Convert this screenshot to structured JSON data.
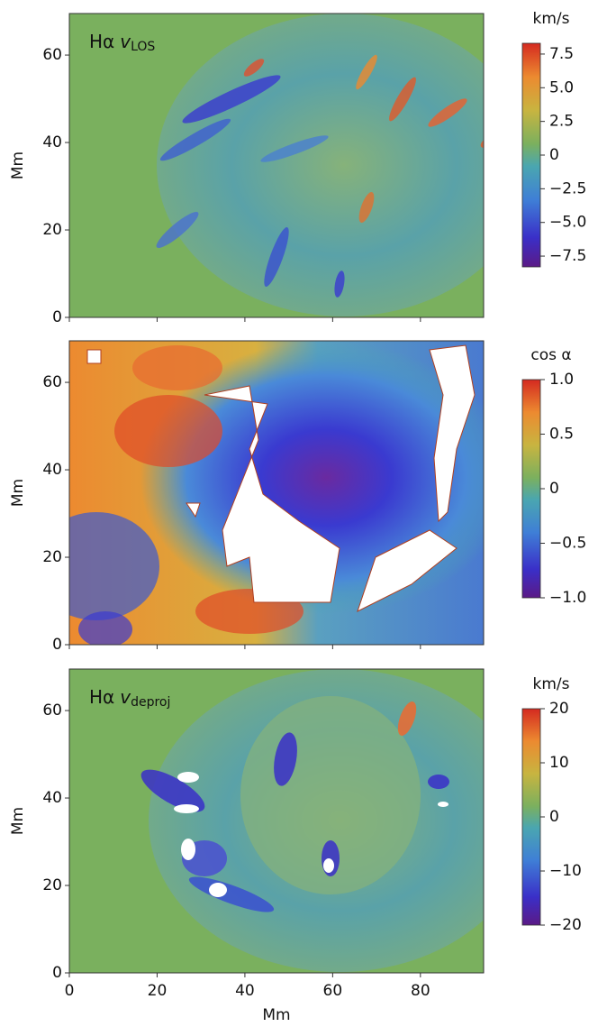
{
  "chart_data": [
    {
      "type": "heatmap",
      "annotation": {
        "prefix": "Hα",
        "symbol": "v",
        "subscript": "LOS"
      },
      "ylabel": "Mm",
      "xlim": [
        0,
        94.4
      ],
      "ylim": [
        0,
        69.5
      ],
      "xticks": [
        0,
        20,
        40,
        60,
        80
      ],
      "yticks": [
        0,
        20,
        40,
        60
      ],
      "xtick_labels": false,
      "colorbar": {
        "label": "km/s",
        "lim": [
          -8.3,
          8.3
        ],
        "ticks": [
          {
            "value": 7.5,
            "label": "7.5"
          },
          {
            "value": 5,
            "label": "5.0"
          },
          {
            "value": 2.5,
            "label": "2.5"
          },
          0,
          {
            "value": -2.5,
            "label": "−2.5"
          },
          {
            "value": -5,
            "label": "−5.0"
          },
          {
            "value": -7.5,
            "label": "−7.5"
          }
        ]
      }
    },
    {
      "type": "heatmap",
      "ylabel": "Mm",
      "xlim": [
        0,
        94.4
      ],
      "ylim": [
        0,
        69.5
      ],
      "xticks": [
        0,
        20,
        40,
        60,
        80
      ],
      "yticks": [
        0,
        20,
        40,
        60
      ],
      "xtick_labels": false,
      "colorbar": {
        "label": "cos α",
        "lim": [
          -1,
          1
        ],
        "ticks": [
          {
            "value": 1,
            "label": "1.0"
          },
          {
            "value": 0.5,
            "label": "0.5"
          },
          0,
          {
            "value": -0.5,
            "label": "−0.5"
          },
          {
            "value": -1,
            "label": "−1.0"
          }
        ]
      }
    },
    {
      "type": "heatmap",
      "annotation": {
        "prefix": "Hα",
        "symbol": "v",
        "subscript": "deproj"
      },
      "ylabel": "Mm",
      "xlabel": "Mm",
      "xlim": [
        0,
        94.4
      ],
      "ylim": [
        0,
        69.5
      ],
      "xticks": [
        0,
        20,
        40,
        60,
        80
      ],
      "yticks": [
        0,
        20,
        40,
        60
      ],
      "xtick_labels": true,
      "colorbar": {
        "label": "km/s",
        "lim": [
          -20,
          20
        ],
        "ticks": [
          20,
          10,
          0,
          {
            "value": -10,
            "label": "−10"
          },
          {
            "value": -20,
            "label": "−20"
          }
        ]
      }
    }
  ]
}
